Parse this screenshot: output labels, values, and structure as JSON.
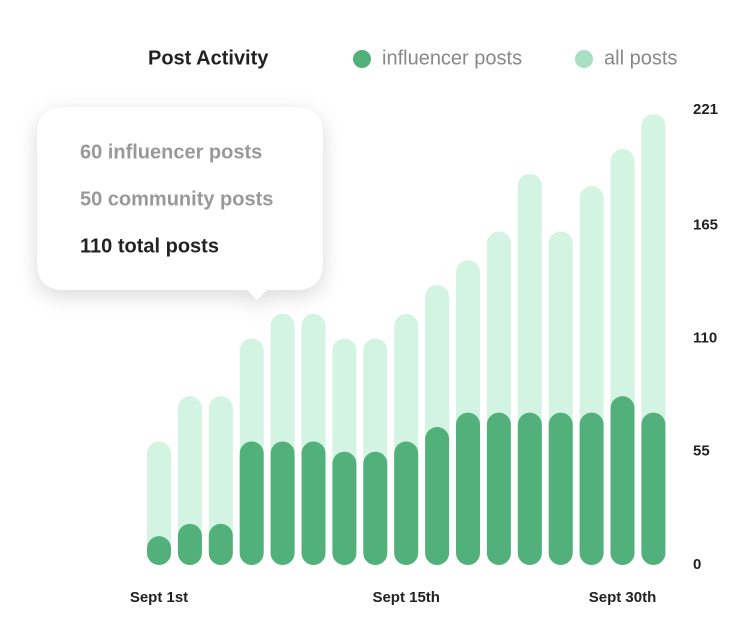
{
  "chart_data": {
    "type": "bar",
    "title": "Post Activity",
    "categories": [
      "Sept 1st",
      null,
      null,
      null,
      null,
      null,
      null,
      null,
      "Sept 15th",
      null,
      null,
      null,
      null,
      null,
      null,
      "Sept 30th",
      null
    ],
    "series": [
      {
        "name": "all posts",
        "color": "#d3f3e3",
        "legend_color": "#a9dfc2",
        "values": [
          60,
          82,
          82,
          110,
          122,
          122,
          110,
          110,
          122,
          136,
          148,
          162,
          190,
          162,
          184,
          202,
          219
        ]
      },
      {
        "name": "influencer posts",
        "color": "#52b07a",
        "legend_color": "#52b07a",
        "values": [
          14,
          20,
          20,
          60,
          60,
          60,
          55,
          55,
          60,
          67,
          74,
          74,
          74,
          74,
          74,
          82,
          74
        ]
      }
    ],
    "ylim": [
      0,
      221
    ],
    "yticks": [
      0,
      55,
      110,
      165,
      221
    ],
    "annotations": [
      "60 influencer posts",
      "50 community posts",
      "110 total posts"
    ]
  }
}
